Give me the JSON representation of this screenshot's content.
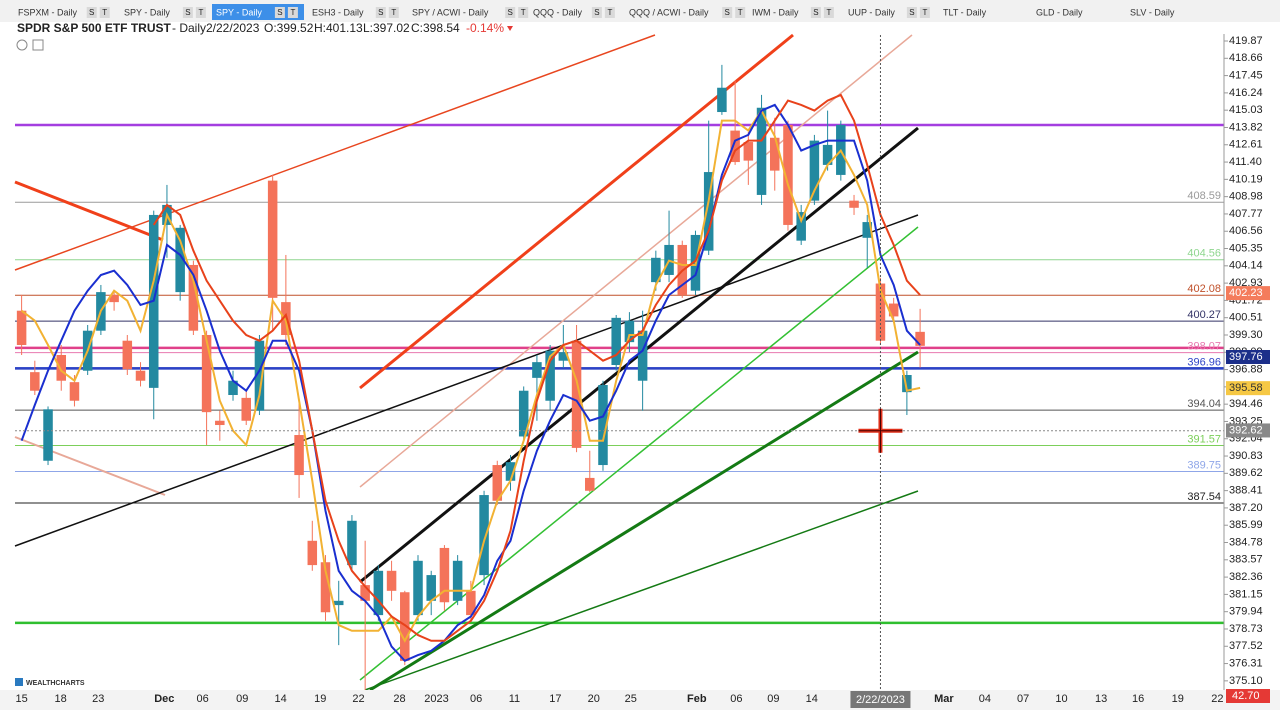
{
  "tabs": {
    "items": [
      {
        "label": "FSPXM - Daily",
        "active": false
      },
      {
        "label": "SPY - Daily",
        "active": false
      },
      {
        "label": "SPY - Daily",
        "active": true
      },
      {
        "label": "ESH3 - Daily",
        "active": false
      },
      {
        "label": "SPY / ACWI - Daily",
        "active": false
      },
      {
        "label": "QQQ - Daily",
        "active": false
      },
      {
        "label": "QQQ / ACWI - Daily",
        "active": false
      },
      {
        "label": "IWM - Daily",
        "active": false
      },
      {
        "label": "UUP - Daily",
        "active": false
      },
      {
        "label": "TLT - Daily",
        "active": false
      },
      {
        "label": "GLD - Daily",
        "active": false
      },
      {
        "label": "SLV - Daily",
        "active": false
      }
    ],
    "buttons": [
      "S",
      "T"
    ]
  },
  "header": {
    "name": "SPDR S&P 500 ETF TRUST",
    "interval": "- Daily",
    "date": "2/22/2023",
    "open": "O:399.52",
    "high": "H:401.13",
    "low": "L:397.02",
    "close": "C:398.54",
    "change": "-0.14%"
  },
  "logo": "WEALTHCHARTS",
  "chart_data": {
    "type": "candlestick",
    "up_color": "#2389a0",
    "down_color": "#f4735a",
    "ylim": [
      374.46,
      420.29
    ],
    "yticks": [
      419.87,
      418.66,
      417.45,
      416.24,
      415.03,
      413.82,
      412.61,
      {
        "value": 411.4,
        "label": "411.40"
      },
      410.19,
      408.98,
      407.77,
      406.56,
      405.35,
      404.14,
      402.93,
      401.72,
      400.51,
      {
        "value": 399.3,
        "label": "399.30"
      },
      398.09,
      396.88,
      395.67,
      394.46,
      393.25,
      392.04,
      390.83,
      389.62,
      388.41,
      {
        "value": 387.2,
        "label": "387.20"
      },
      385.99,
      384.78,
      383.57,
      382.36,
      381.15,
      379.94,
      378.73,
      377.52,
      376.31,
      {
        "value": 375.1,
        "label": "375.10"
      }
    ],
    "xlim": [
      -0.5,
      91
    ],
    "xticks": [
      {
        "value": 0,
        "label": "15"
      },
      {
        "value": 2.95,
        "label": "18"
      },
      {
        "value": 5.8,
        "label": "23"
      },
      {
        "value": 10.8,
        "label": "Dec"
      },
      {
        "value": 13.7,
        "label": "06"
      },
      {
        "value": 16.7,
        "label": "09"
      },
      {
        "value": 19.6,
        "label": "14"
      },
      {
        "value": 22.6,
        "label": "19"
      },
      {
        "value": 25.5,
        "label": "22"
      },
      {
        "value": 28.6,
        "label": "28"
      },
      {
        "value": 31.4,
        "label": "2023"
      },
      {
        "value": 34.4,
        "label": "06"
      },
      {
        "value": 37.3,
        "label": "11"
      },
      {
        "value": 40.4,
        "label": "17"
      },
      {
        "value": 43.3,
        "label": "20"
      },
      {
        "value": 46.1,
        "label": "25"
      },
      {
        "value": 51.1,
        "label": "Feb"
      },
      {
        "value": 54.1,
        "label": "06"
      },
      {
        "value": 56.9,
        "label": "09"
      },
      {
        "value": 59.8,
        "label": "14"
      },
      {
        "value": 69.8,
        "label": "Mar"
      },
      {
        "value": 72.9,
        "label": "04"
      },
      {
        "value": 75.8,
        "label": "07"
      },
      {
        "value": 78.7,
        "label": "10"
      },
      {
        "value": 81.7,
        "label": "13"
      },
      {
        "value": 84.5,
        "label": "16"
      },
      {
        "value": 87.5,
        "label": "19"
      },
      {
        "value": 90.5,
        "label": "22"
      }
    ],
    "crosshair": {
      "x": 65,
      "y": 392.6,
      "label": "2/22/2023"
    },
    "candles": {
      "open": [
        401.0,
        396.7,
        390.5,
        397.9,
        396.0,
        396.8,
        399.6,
        402.1,
        398.9,
        396.8,
        395.6,
        407.0,
        402.3,
        404.2,
        399.3,
        393.3,
        395.1,
        394.9,
        394.0,
        410.1,
        401.6,
        392.3,
        384.9,
        383.4,
        380.4,
        383.2,
        381.8,
        379.7,
        382.8,
        381.3,
        379.7,
        380.7,
        384.4,
        380.7,
        381.4,
        382.5,
        390.2,
        389.1,
        392.2,
        396.3,
        394.7,
        397.5,
        398.9,
        389.3,
        390.2,
        397.2,
        398.8,
        396.1,
        403.0,
        403.5,
        405.6,
        402.4,
        405.2,
        414.9,
        413.6,
        412.8,
        409.1,
        413.1,
        414.0,
        405.9,
        408.7,
        411.2,
        410.5,
        408.7,
        406.1,
        402.9,
        401.5,
        395.3,
        399.52
      ],
      "high": [
        402.1,
        397.5,
        394.3,
        398.6,
        396.5,
        400.0,
        402.8,
        402.4,
        399.3,
        397.4,
        408.0,
        409.8,
        407.0,
        404.5,
        399.6,
        394.0,
        396.8,
        395.4,
        399.3,
        410.5,
        404.9,
        394.7,
        386.3,
        383.9,
        382.1,
        386.7,
        384.9,
        383.2,
        383.5,
        381.4,
        383.9,
        382.8,
        384.6,
        383.9,
        382.1,
        388.4,
        390.5,
        390.9,
        395.7,
        397.9,
        398.6,
        400.0,
        400.0,
        391.2,
        396.1,
        400.7,
        400.9,
        401.0,
        405.2,
        408.0,
        405.9,
        406.6,
        414.3,
        418.2,
        417.1,
        413.5,
        416.1,
        414.5,
        414.3,
        408.4,
        413.3,
        415.0,
        414.3,
        409.1,
        407.7,
        403.3,
        401.9,
        396.8,
        401.13
      ],
      "low": [
        397.9,
        395.1,
        390.2,
        395.4,
        394.3,
        396.5,
        399.3,
        401.0,
        396.5,
        395.7,
        393.4,
        404.7,
        401.7,
        399.3,
        391.6,
        391.9,
        394.7,
        393.0,
        393.7,
        399.6,
        398.6,
        387.9,
        382.8,
        379.3,
        377.6,
        382.8,
        374.4,
        379.3,
        380.7,
        376.2,
        379.3,
        379.7,
        380.0,
        380.4,
        379.3,
        381.8,
        387.4,
        388.4,
        391.9,
        393.3,
        394.0,
        397.0,
        391.1,
        388.3,
        389.8,
        396.8,
        398.1,
        394.0,
        402.4,
        403.0,
        401.9,
        402.1,
        404.9,
        414.7,
        411.2,
        409.8,
        408.4,
        409.4,
        406.6,
        405.6,
        408.4,
        410.8,
        410.1,
        407.7,
        404.0,
        398.6,
        400.3,
        393.7,
        397.02
      ],
      "close": [
        398.6,
        395.4,
        394.1,
        396.1,
        394.7,
        399.6,
        402.3,
        401.6,
        396.9,
        396.1,
        407.7,
        408.4,
        406.8,
        399.6,
        393.9,
        393.0,
        396.1,
        393.3,
        398.9,
        401.9,
        399.3,
        389.5,
        383.2,
        379.9,
        380.7,
        386.3,
        380.7,
        382.8,
        381.4,
        376.5,
        383.5,
        382.5,
        380.6,
        383.5,
        379.7,
        388.1,
        387.7,
        390.4,
        395.4,
        397.4,
        398.2,
        398.1,
        391.4,
        388.4,
        395.8,
        400.5,
        400.3,
        399.6,
        404.7,
        405.6,
        402.1,
        406.3,
        410.7,
        416.6,
        411.4,
        411.5,
        415.2,
        410.8,
        407.0,
        407.9,
        412.9,
        412.6,
        414.0,
        408.2,
        407.2,
        398.9,
        400.6,
        396.5,
        398.54
      ]
    },
    "series": [
      {
        "color": "#f2b233",
        "values": [
          401.0,
          400.3,
          398.6,
          396.8,
          396.1,
          398.2,
          401.0,
          402.4,
          401.7,
          399.6,
          403.1,
          407.7,
          405.9,
          403.1,
          398.9,
          394.7,
          392.6,
          391.6,
          395.1,
          401.7,
          400.3,
          394.7,
          389.1,
          382.8,
          379.0,
          378.6,
          378.6,
          378.6,
          379.6,
          377.9,
          379.6,
          380.7,
          381.4,
          381.4,
          381.4,
          384.9,
          387.7,
          389.1,
          391.9,
          395.1,
          397.8,
          398.6,
          396.1,
          391.9,
          391.9,
          396.1,
          399.3,
          399.3,
          402.8,
          404.5,
          404.2,
          404.2,
          408.7,
          414.3,
          414.3,
          413.6,
          415.0,
          413.2,
          409.8,
          407.3,
          409.4,
          411.2,
          412.2,
          410.5,
          408.4,
          402.4,
          400.3,
          395.4,
          395.6
        ]
      },
      {
        "color": "#1a2fd0",
        "values": [
          391.9,
          394.4,
          396.8,
          398.9,
          401.0,
          402.4,
          403.5,
          403.8,
          402.8,
          401.4,
          401.7,
          405.6,
          404.9,
          403.5,
          401.0,
          398.2,
          396.1,
          395.4,
          396.8,
          398.9,
          398.9,
          396.8,
          392.6,
          387.0,
          382.8,
          381.4,
          380.7,
          379.6,
          377.5,
          376.5,
          376.9,
          377.2,
          377.9,
          379.0,
          379.6,
          381.1,
          383.5,
          384.9,
          388.4,
          391.2,
          393.3,
          395.1,
          394.7,
          393.3,
          393.6,
          395.4,
          397.5,
          398.2,
          400.3,
          402.1,
          402.8,
          403.5,
          406.6,
          410.5,
          412.9,
          413.3,
          415.0,
          415.4,
          414.0,
          412.2,
          412.6,
          412.9,
          412.9,
          412.9,
          410.1,
          404.9,
          402.8,
          399.6,
          398.6
        ]
      },
      {
        "color": "#e8421b",
        "values": [
          null,
          null,
          null,
          null,
          null,
          null,
          null,
          null,
          null,
          null,
          407.0,
          408.4,
          407.7,
          405.2,
          403.1,
          401.7,
          400.3,
          399.3,
          398.9,
          399.6,
          400.7,
          397.5,
          392.6,
          387.7,
          384.9,
          382.8,
          381.7,
          380.7,
          379.6,
          379.0,
          378.3,
          377.9,
          377.9,
          378.6,
          379.3,
          380.7,
          382.8,
          385.6,
          390.5,
          394.7,
          397.5,
          398.6,
          398.9,
          398.2,
          397.5,
          397.9,
          398.9,
          399.6,
          401.4,
          402.8,
          403.8,
          404.5,
          406.6,
          410.1,
          412.2,
          412.9,
          412.9,
          414.3,
          415.7,
          415.4,
          415.0,
          415.7,
          416.1,
          414.3,
          411.2,
          407.7,
          405.6,
          403.1,
          402.1
        ]
      }
    ],
    "levels": [
      {
        "value": 408.59,
        "color": "#9a9a9a"
      },
      {
        "value": 404.56,
        "color": "#8fd68f"
      },
      {
        "value": 402.08,
        "color": "#c0502a"
      },
      {
        "value": 400.27,
        "color": "#333366"
      },
      {
        "value": 398.07,
        "color": "#e87ab0"
      },
      {
        "value": 396.96,
        "color": "#3045c8"
      },
      {
        "value": 394.04,
        "color": "#555555"
      },
      {
        "value": 391.57,
        "color": "#7ccf5a"
      },
      {
        "value": 389.75,
        "color": "#8fa6e8"
      },
      {
        "value": 387.54,
        "color": "#222222"
      }
    ],
    "bands": [
      {
        "value": 413.99,
        "color": "#a43ee0"
      },
      {
        "value": 398.4,
        "color": "#e0408a"
      },
      {
        "value": 396.96,
        "color": "#1a35c0"
      },
      {
        "value": 379.16,
        "color": "#2fbf2f"
      }
    ],
    "price_badges": [
      {
        "value": 402.23,
        "color": "#f47c5c",
        "text_color": "#ffffff"
      },
      {
        "value": 397.76,
        "color": "#1c2f8a",
        "text_color": "#ffffff"
      },
      {
        "value": 395.58,
        "color": "#f6c844",
        "text_color": "#333333"
      },
      {
        "value": 392.62,
        "color": "#888888",
        "text_color": "#ffffff"
      }
    ],
    "indicator_badge": {
      "value": 42.7,
      "label": "42.70",
      "color": "#e53935"
    }
  }
}
